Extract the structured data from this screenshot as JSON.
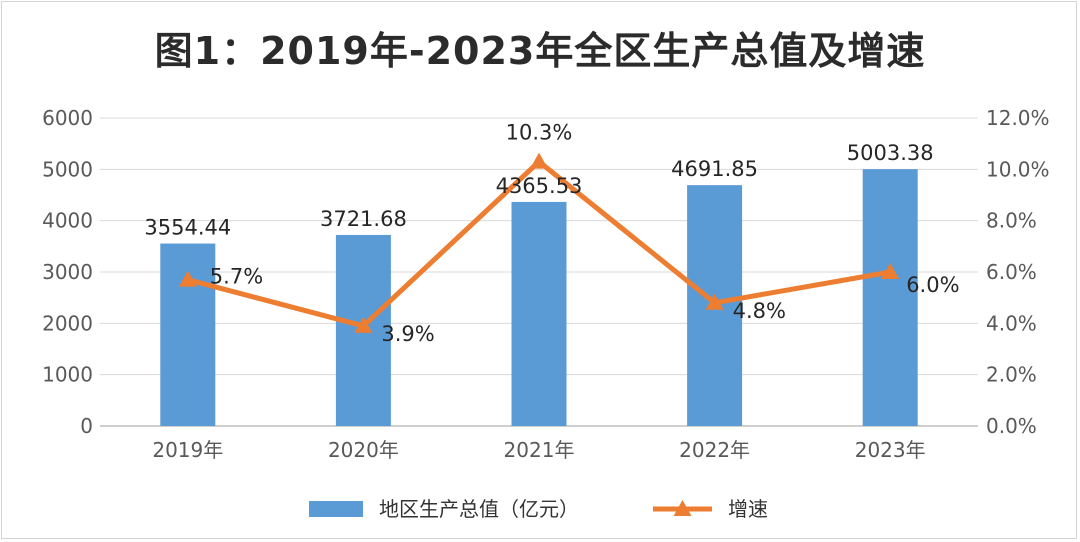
{
  "chart_data": {
    "type": "bar+line",
    "title": "图1：2019年-2023年全区生产总值及增速",
    "categories": [
      "2019年",
      "2020年",
      "2021年",
      "2022年",
      "2023年"
    ],
    "series": [
      {
        "name": "地区生产总值（亿元）",
        "kind": "bar",
        "axis": "left",
        "color": "#5b9bd5",
        "values": [
          3554.44,
          3721.68,
          4365.53,
          4691.85,
          5003.38
        ],
        "labels": [
          "3554.44",
          "3721.68",
          "4365.53",
          "4691.85",
          "5003.38"
        ]
      },
      {
        "name": "增速",
        "kind": "line",
        "axis": "right",
        "color": "#ed7d31",
        "marker": "triangle",
        "values": [
          5.7,
          3.9,
          10.3,
          4.8,
          6.0
        ],
        "labels": [
          "5.7%",
          "3.9%",
          "10.3%",
          "4.8%",
          "6.0%"
        ]
      }
    ],
    "left_axis": {
      "min": 0,
      "max": 6000,
      "step": 1000,
      "ticks": [
        "0",
        "1000",
        "2000",
        "3000",
        "4000",
        "5000",
        "6000"
      ]
    },
    "right_axis": {
      "min": 0,
      "max": 12,
      "step": 2,
      "ticks": [
        "0.0%",
        "2.0%",
        "4.0%",
        "6.0%",
        "8.0%",
        "10.0%",
        "12.0%"
      ]
    },
    "grid": true,
    "legend_position": "bottom"
  }
}
